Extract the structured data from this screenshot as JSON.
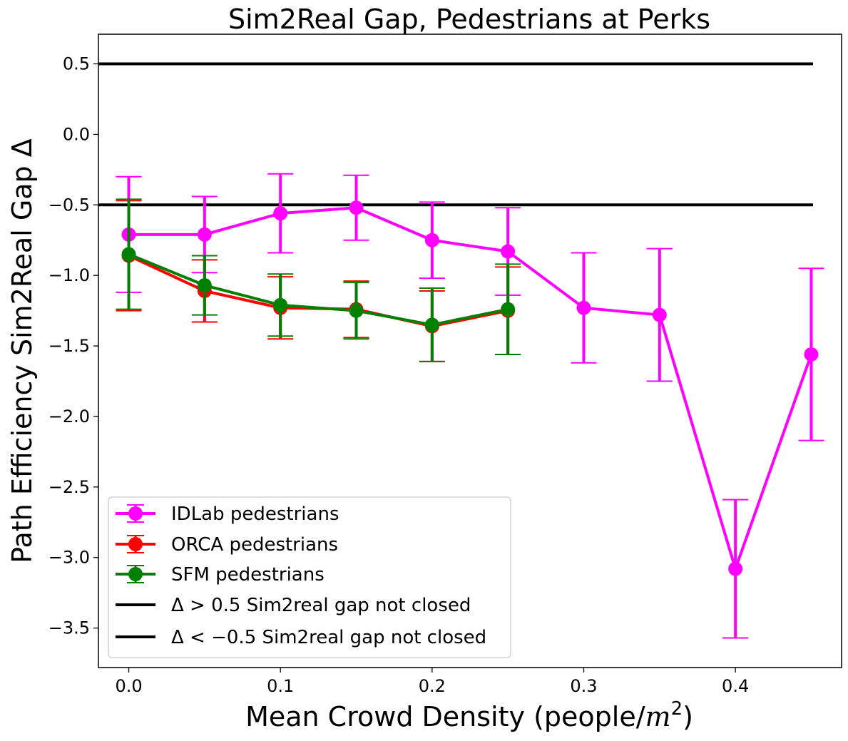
{
  "chart_data": {
    "type": "line",
    "title": "Sim2Real Gap, Pedestrians at Perks",
    "xlabel": "Mean Crowd Density (people/",
    "xlabel_math": "m",
    "xlabel_sup": "2",
    "xlabel_end": ")",
    "ylabel": "Path Efficiency Sim2Real Gap Δ",
    "xlim": [
      -0.02,
      0.47
    ],
    "ylim": [
      -3.78,
      0.71
    ],
    "xticks": [
      0.0,
      0.1,
      0.2,
      0.3,
      0.4
    ],
    "xtick_labels": [
      "0.0",
      "0.1",
      "0.2",
      "0.3",
      "0.4"
    ],
    "yticks": [
      0.5,
      0.0,
      -0.5,
      -1.0,
      -1.5,
      -2.0,
      -2.5,
      -3.0,
      -3.5
    ],
    "ytick_labels": [
      "0.5",
      "0.0",
      "−0.5",
      "−1.0",
      "−1.5",
      "−2.0",
      "−2.5",
      "−3.0",
      "−3.5"
    ],
    "grid": false,
    "legend_position": "lower-left",
    "series": [
      {
        "name": "IDLab pedestrians",
        "color": "#ff00ff",
        "x": [
          0.0,
          0.05,
          0.1,
          0.15,
          0.2,
          0.25,
          0.3,
          0.35,
          0.4,
          0.45
        ],
        "y": [
          -0.71,
          -0.71,
          -0.56,
          -0.52,
          -0.75,
          -0.83,
          -1.23,
          -1.28,
          -3.08,
          -1.56
        ],
        "err": [
          0.41,
          0.27,
          0.28,
          0.23,
          0.27,
          0.31,
          0.39,
          0.47,
          0.49,
          0.61
        ]
      },
      {
        "name": "ORCA pedestrians",
        "color": "#ff0000",
        "x": [
          0.0,
          0.05,
          0.1,
          0.15,
          0.2,
          0.25
        ],
        "y": [
          -0.86,
          -1.11,
          -1.23,
          -1.24,
          -1.36,
          -1.25
        ],
        "err": [
          0.39,
          0.22,
          0.22,
          0.2,
          0.25,
          0.31
        ]
      },
      {
        "name": "SFM pedestrians",
        "color": "#008000",
        "x": [
          0.0,
          0.05,
          0.1,
          0.15,
          0.2,
          0.25
        ],
        "y": [
          -0.85,
          -1.07,
          -1.21,
          -1.25,
          -1.35,
          -1.24
        ],
        "err": [
          0.39,
          0.21,
          0.22,
          0.2,
          0.26,
          0.32
        ]
      }
    ],
    "reference_lines": [
      {
        "name": "Δ > 0.5 Sim2real gap not closed",
        "y": 0.5,
        "color": "#000000"
      },
      {
        "name": "Δ < −0.5 Sim2real gap not closed",
        "y": -0.5,
        "color": "#000000"
      }
    ]
  }
}
